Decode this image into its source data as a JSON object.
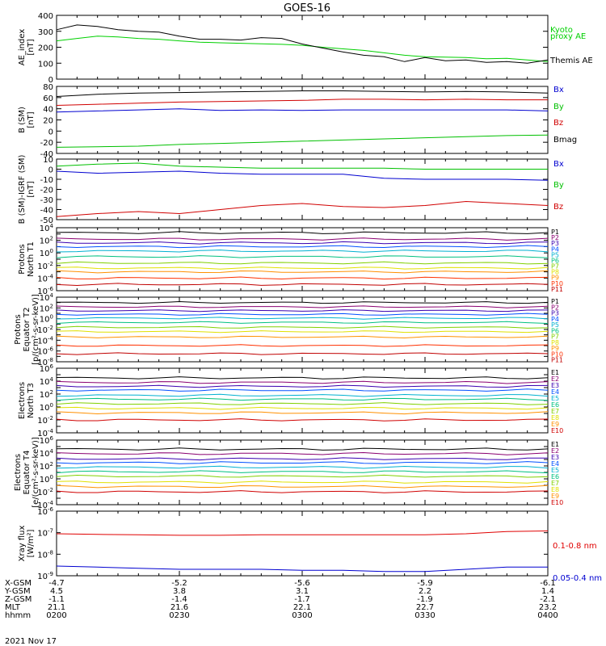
{
  "title": "GOES-16",
  "date_label": "2021 Nov 17",
  "chart_data": [
    {
      "type": "line",
      "panel": "ae",
      "ylabel": [
        "AE_index",
        "[nT]"
      ],
      "ylim": [
        0,
        400
      ],
      "yticks": [
        "400",
        "300",
        "200",
        "100",
        "0"
      ],
      "ytick_values": [
        400,
        300,
        200,
        100,
        0
      ],
      "series": [
        {
          "name": "Kyoto proxy AE",
          "label_lines": [
            "Kyoto",
            "proxy AE"
          ],
          "color": "#00d000",
          "x": [
            0,
            5,
            10,
            15,
            20,
            25,
            30,
            35,
            40,
            45,
            50,
            55,
            60,
            65,
            70,
            75,
            80,
            85,
            90,
            95,
            100,
            105,
            110,
            115,
            120
          ],
          "values": [
            240,
            255,
            270,
            265,
            255,
            250,
            240,
            232,
            228,
            225,
            222,
            218,
            212,
            200,
            190,
            180,
            165,
            150,
            140,
            138,
            135,
            128,
            130,
            120,
            110
          ]
        },
        {
          "name": "Themis AE",
          "label_lines": [
            "Themis AE"
          ],
          "color": "#000000",
          "x": [
            0,
            5,
            10,
            15,
            20,
            25,
            30,
            35,
            40,
            45,
            50,
            55,
            60,
            65,
            70,
            75,
            80,
            85,
            90,
            95,
            100,
            105,
            110,
            115,
            120
          ],
          "values": [
            310,
            340,
            330,
            310,
            300,
            295,
            270,
            250,
            250,
            245,
            260,
            255,
            220,
            195,
            170,
            150,
            140,
            110,
            135,
            115,
            120,
            105,
            110,
            100,
            120
          ]
        }
      ]
    },
    {
      "type": "line",
      "panel": "bsm",
      "ylabel": [
        "B (SM)",
        "[nT]"
      ],
      "ylim": [
        -40,
        80
      ],
      "yticks": [
        "80",
        "60",
        "40",
        "20",
        "0",
        "-20",
        "-40"
      ],
      "ytick_values": [
        80,
        60,
        40,
        20,
        0,
        -20,
        -40
      ],
      "series": [
        {
          "name": "Bx",
          "color": "#0000d0",
          "x": [
            0,
            10,
            20,
            30,
            40,
            50,
            60,
            70,
            80,
            90,
            100,
            110,
            120
          ],
          "values": [
            34,
            36,
            38,
            40,
            37,
            38,
            37,
            38,
            38,
            38,
            38,
            38,
            36
          ]
        },
        {
          "name": "By",
          "color": "#00c000",
          "x": [
            0,
            10,
            20,
            30,
            40,
            50,
            60,
            70,
            80,
            90,
            100,
            110,
            120
          ],
          "values": [
            -29,
            -28,
            -27,
            -24,
            -22,
            -20,
            -18,
            -16,
            -14,
            -12,
            -10,
            -8,
            -7
          ]
        },
        {
          "name": "Bz",
          "color": "#d00000",
          "x": [
            0,
            10,
            20,
            30,
            40,
            50,
            60,
            70,
            80,
            90,
            100,
            110,
            120
          ],
          "values": [
            46,
            48,
            50,
            52,
            53,
            54,
            55,
            57,
            57,
            56,
            57,
            56,
            56
          ]
        },
        {
          "name": "Bmag",
          "color": "#000000",
          "x": [
            0,
            10,
            20,
            30,
            40,
            50,
            60,
            70,
            80,
            90,
            100,
            110,
            120
          ],
          "values": [
            62,
            66,
            68,
            69,
            70,
            71,
            72,
            72,
            71,
            70,
            71,
            70,
            68
          ]
        }
      ]
    },
    {
      "type": "line",
      "panel": "bsmigrf",
      "ylabel": [
        "B (SM)-IGRF (SM)",
        "[nT]"
      ],
      "ylim": [
        -50,
        10
      ],
      "yticks": [
        "10",
        "0",
        "-10",
        "-20",
        "-30",
        "-40",
        "-50"
      ],
      "ytick_values": [
        10,
        0,
        -10,
        -20,
        -30,
        -40,
        -50
      ],
      "series": [
        {
          "name": "Bx",
          "color": "#0000d0",
          "x": [
            0,
            10,
            20,
            30,
            40,
            50,
            60,
            70,
            80,
            90,
            100,
            110,
            120
          ],
          "values": [
            -2,
            -4,
            -3,
            -2,
            -4,
            -5,
            -5,
            -5,
            -9,
            -10,
            -10,
            -10,
            -11
          ]
        },
        {
          "name": "By",
          "color": "#00c000",
          "x": [
            0,
            10,
            20,
            30,
            40,
            50,
            60,
            70,
            80,
            90,
            100,
            110,
            120
          ],
          "values": [
            3,
            5,
            6,
            3,
            2,
            1,
            1,
            1,
            1,
            0,
            0,
            0,
            0
          ]
        },
        {
          "name": "Bz",
          "color": "#d00000",
          "x": [
            0,
            10,
            20,
            30,
            40,
            50,
            60,
            70,
            80,
            90,
            100,
            110,
            120
          ],
          "values": [
            -47,
            -44,
            -42,
            -44,
            -40,
            -36,
            -34,
            -37,
            -38,
            -36,
            -32,
            -34,
            -36
          ]
        }
      ]
    },
    {
      "type": "line",
      "panel": "pnt1",
      "ylabel": [
        "Protons",
        "North T1"
      ],
      "log": true,
      "ylim_exp": [
        -6,
        4
      ],
      "yticks_exp": [
        4,
        2,
        0,
        -2,
        -4,
        -6
      ],
      "series": [
        {
          "name": "P1",
          "color": "#000000",
          "level_exp": 3.2
        },
        {
          "name": "P2",
          "color": "#8a0070",
          "level_exp": 2.2
        },
        {
          "name": "P3",
          "color": "#3a00b0",
          "level_exp": 1.6
        },
        {
          "name": "P4",
          "color": "#0050ff",
          "level_exp": 1.0
        },
        {
          "name": "P5",
          "color": "#00b0d0",
          "level_exp": 0.3
        },
        {
          "name": "P6",
          "color": "#00c080",
          "level_exp": -0.6
        },
        {
          "name": "P7",
          "color": "#80d000",
          "level_exp": -1.6
        },
        {
          "name": "P8",
          "color": "#e0e000",
          "level_exp": -2.4
        },
        {
          "name": "P9",
          "color": "#ff9000",
          "level_exp": -3.0
        },
        {
          "name": "P10",
          "color": "#ff3000",
          "level_exp": -4.0
        },
        {
          "name": "P11",
          "color": "#c00000",
          "level_exp": -5.0
        }
      ]
    },
    {
      "type": "line",
      "panel": "pet2",
      "ylabel": [
        "Protons",
        "Equator T2",
        "[p/(cm²-s-sr-keV)]"
      ],
      "log": true,
      "ylim_exp": [
        -8,
        4
      ],
      "yticks_exp": [
        4,
        2,
        0,
        -2,
        -4,
        -6,
        -8
      ],
      "series": [
        {
          "name": "P1",
          "color": "#000000",
          "level_exp": 3.0
        },
        {
          "name": "P2",
          "color": "#8a0070",
          "level_exp": 2.2
        },
        {
          "name": "P3",
          "color": "#3a00b0",
          "level_exp": 1.5
        },
        {
          "name": "P4",
          "color": "#0050ff",
          "level_exp": 0.8
        },
        {
          "name": "P5",
          "color": "#00b0d0",
          "level_exp": 0.1
        },
        {
          "name": "P6",
          "color": "#00c080",
          "level_exp": -0.7
        },
        {
          "name": "P7",
          "color": "#80d000",
          "level_exp": -1.6
        },
        {
          "name": "P8",
          "color": "#e0e000",
          "level_exp": -2.4
        },
        {
          "name": "P9",
          "color": "#ff9000",
          "level_exp": -3.4
        },
        {
          "name": "P10",
          "color": "#ff3000",
          "level_exp": -5.0
        },
        {
          "name": "P11",
          "color": "#c00000",
          "level_exp": -6.5
        }
      ]
    },
    {
      "type": "line",
      "panel": "ent3",
      "ylabel": [
        "Electrons",
        "North T3"
      ],
      "log": true,
      "ylim_exp": [
        -4,
        6
      ],
      "yticks_exp": [
        6,
        4,
        2,
        0,
        -2,
        -4
      ],
      "series": [
        {
          "name": "E1",
          "color": "#000000",
          "level_exp": 4.5
        },
        {
          "name": "E2",
          "color": "#8a0070",
          "level_exp": 3.8
        },
        {
          "name": "E3",
          "color": "#3a00b0",
          "level_exp": 3.2
        },
        {
          "name": "E4",
          "color": "#0050ff",
          "level_exp": 2.6
        },
        {
          "name": "E5",
          "color": "#00b0d0",
          "level_exp": 1.8
        },
        {
          "name": "E6",
          "color": "#00c080",
          "level_exp": 1.2
        },
        {
          "name": "E7",
          "color": "#80d000",
          "level_exp": 0.5
        },
        {
          "name": "E8",
          "color": "#e0e000",
          "level_exp": -0.2
        },
        {
          "name": "E9",
          "color": "#ff9000",
          "level_exp": -0.9
        },
        {
          "name": "E10",
          "color": "#d00000",
          "level_exp": -2.0
        }
      ]
    },
    {
      "type": "line",
      "panel": "eet4",
      "ylabel": [
        "Electrons",
        "Equator T4",
        "[e/(cm²-s-sr-keV)]"
      ],
      "log": true,
      "ylim_exp": [
        -4,
        6
      ],
      "yticks_exp": [
        6,
        4,
        2,
        0,
        -2,
        -4
      ],
      "series": [
        {
          "name": "E1",
          "color": "#000000",
          "level_exp": 4.6
        },
        {
          "name": "E2",
          "color": "#8a0070",
          "level_exp": 3.9
        },
        {
          "name": "E3",
          "color": "#3a00b0",
          "level_exp": 3.1
        },
        {
          "name": "E4",
          "color": "#0050ff",
          "level_exp": 2.5
        },
        {
          "name": "E5",
          "color": "#00b0d0",
          "level_exp": 1.8
        },
        {
          "name": "E6",
          "color": "#00c080",
          "level_exp": 1.1
        },
        {
          "name": "E7",
          "color": "#80d000",
          "level_exp": 0.4
        },
        {
          "name": "E8",
          "color": "#e0e000",
          "level_exp": -0.5
        },
        {
          "name": "E9",
          "color": "#ff9000",
          "level_exp": -1.2
        },
        {
          "name": "E10",
          "color": "#d00000",
          "level_exp": -2.0
        }
      ]
    },
    {
      "type": "line",
      "panel": "xray",
      "ylabel": [
        "Xray flux",
        "[W/m²]"
      ],
      "log": true,
      "ylim_exp": [
        -9,
        -6
      ],
      "yticks_exp": [
        -6,
        -7,
        -8,
        -9
      ],
      "series": [
        {
          "name": "0.1-0.8 nm",
          "color": "#e00000",
          "x": [
            0,
            10,
            20,
            30,
            40,
            50,
            60,
            70,
            80,
            90,
            100,
            110,
            120
          ],
          "level_exp": [
            -7.05,
            -7.08,
            -7.1,
            -7.12,
            -7.12,
            -7.1,
            -7.1,
            -7.1,
            -7.1,
            -7.1,
            -7.05,
            -6.95,
            -6.92
          ]
        },
        {
          "name": "0.05-0.4 nm",
          "color": "#0000d0",
          "x": [
            0,
            10,
            20,
            30,
            40,
            50,
            60,
            70,
            80,
            90,
            100,
            110,
            120
          ],
          "level_exp": [
            -8.55,
            -8.6,
            -8.65,
            -8.7,
            -8.7,
            -8.7,
            -8.75,
            -8.75,
            -8.8,
            -8.8,
            -8.7,
            -8.6,
            -8.6
          ]
        }
      ]
    }
  ],
  "x_axis": {
    "ticks": [
      {
        "time": 0,
        "xgsm": "-4.7",
        "ygsm": "4.5",
        "zgsm": "-1.1",
        "mlt": "21.1",
        "hhmm": "0200"
      },
      {
        "time": 30,
        "xgsm": "-5.2",
        "ygsm": "3.8",
        "zgsm": "-1.4",
        "mlt": "21.6",
        "hhmm": "0230"
      },
      {
        "time": 60,
        "xgsm": "-5.6",
        "ygsm": "3.1",
        "zgsm": "-1.7",
        "mlt": "22.1",
        "hhmm": "0300"
      },
      {
        "time": 90,
        "xgsm": "-5.9",
        "ygsm": "2.2",
        "zgsm": "-1.9",
        "mlt": "22.7",
        "hhmm": "0330"
      },
      {
        "time": 120,
        "xgsm": "-6.1",
        "ygsm": "1.4",
        "zgsm": "-2.1",
        "mlt": "23.2",
        "hhmm": "0400"
      }
    ],
    "row_labels": {
      "xgsm": "X-GSM",
      "ygsm": "Y-GSM",
      "zgsm": "Z-GSM",
      "mlt": "MLT",
      "hhmm": "hhmm"
    }
  }
}
